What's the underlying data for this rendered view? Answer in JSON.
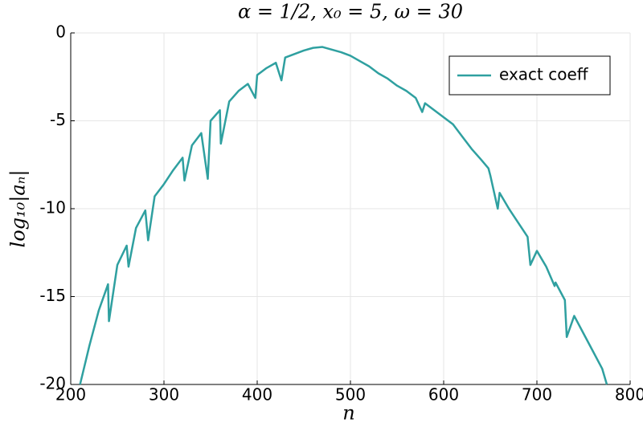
{
  "chart_data": {
    "type": "line",
    "title": "α = 1/2, x₀ = 5, ω = 30",
    "x_label": "n",
    "y_label": "log₁₀|aₙ|",
    "xlim": [
      200,
      800
    ],
    "xticks": [
      200,
      300,
      400,
      500,
      600,
      700,
      800
    ],
    "ylim": [
      -20,
      0
    ],
    "yticks": [
      0,
      -5,
      -10,
      -15,
      -20
    ],
    "grid": true,
    "legend": "top-right",
    "x": [
      210,
      220,
      230,
      240,
      241,
      250,
      260,
      262,
      270,
      280,
      283,
      290,
      300,
      310,
      320,
      322,
      330,
      340,
      347,
      350,
      360,
      361,
      370,
      380,
      390,
      398,
      400,
      410,
      420,
      426,
      430,
      440,
      450,
      460,
      470,
      480,
      490,
      500,
      510,
      520,
      530,
      540,
      550,
      560,
      570,
      577,
      580,
      590,
      600,
      610,
      620,
      630,
      640,
      648,
      650,
      658,
      660,
      670,
      680,
      690,
      693,
      700,
      710,
      719,
      720,
      730,
      732,
      740,
      750,
      760,
      770,
      775
    ],
    "series": [
      {
        "name": "exact coeff",
        "color": "#2fa0a0",
        "values": [
          -20,
          -17.8,
          -15.8,
          -14.3,
          -16.4,
          -13.2,
          -12.1,
          -13.3,
          -11.1,
          -10.1,
          -11.8,
          -9.3,
          -8.6,
          -7.8,
          -7.1,
          -8.4,
          -6.4,
          -5.7,
          -8.3,
          -5.0,
          -4.4,
          -6.3,
          -3.9,
          -3.3,
          -2.9,
          -3.7,
          -2.4,
          -2.0,
          -1.7,
          -2.7,
          -1.4,
          -1.2,
          -1.0,
          -0.85,
          -0.8,
          -0.95,
          -1.1,
          -1.3,
          -1.6,
          -1.9,
          -2.3,
          -2.6,
          -3.0,
          -3.3,
          -3.7,
          -4.5,
          -4.0,
          -4.4,
          -4.8,
          -5.2,
          -5.9,
          -6.6,
          -7.2,
          -7.7,
          -8.1,
          -10.0,
          -9.1,
          -10.0,
          -10.8,
          -11.6,
          -13.2,
          -12.4,
          -13.3,
          -14.4,
          -14.2,
          -15.2,
          -17.3,
          -16.1,
          -17.1,
          -18.1,
          -19.1,
          -20
        ]
      }
    ]
  }
}
